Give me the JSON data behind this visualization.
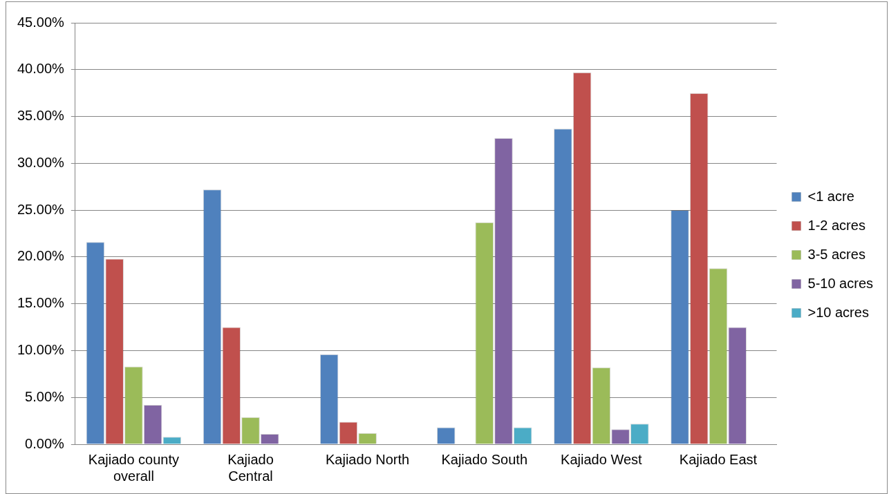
{
  "chart_data": {
    "type": "bar",
    "categories": [
      "Kajiado county overall",
      "Kajiado Central",
      "Kajiado North",
      "Kajiado South",
      "Kajiado West",
      "Kajiado East"
    ],
    "series": [
      {
        "name": "<1 acre",
        "color": "#4f81bd",
        "values": [
          21.6,
          27.2,
          9.6,
          1.8,
          33.7,
          25.0
        ]
      },
      {
        "name": "1-2 acres",
        "color": "#c0504d",
        "values": [
          19.8,
          12.5,
          2.4,
          0,
          39.7,
          37.5
        ]
      },
      {
        "name": "3-5 acres",
        "color": "#9bbb59",
        "values": [
          8.3,
          2.9,
          1.2,
          23.7,
          8.2,
          18.8
        ]
      },
      {
        "name": "5-10 acres",
        "color": "#8064a2",
        "values": [
          4.2,
          1.1,
          0,
          32.7,
          1.6,
          12.5
        ]
      },
      {
        "name": ">10 acres",
        "color": "#4bacc6",
        "values": [
          0.8,
          0,
          0,
          1.8,
          2.2,
          0
        ]
      }
    ],
    "ylim": [
      0,
      45
    ],
    "yticks": [
      {
        "value": 0,
        "label": "0.00%"
      },
      {
        "value": 5,
        "label": "5.00%"
      },
      {
        "value": 10,
        "label": "10.00%"
      },
      {
        "value": 15,
        "label": "15.00%"
      },
      {
        "value": 20,
        "label": "20.00%"
      },
      {
        "value": 25,
        "label": "25.00%"
      },
      {
        "value": 30,
        "label": "30.00%"
      },
      {
        "value": 35,
        "label": "35.00%"
      },
      {
        "value": 40,
        "label": "40.00%"
      },
      {
        "value": 45,
        "label": "45.00%"
      }
    ],
    "grid": "y",
    "legend": "right"
  }
}
